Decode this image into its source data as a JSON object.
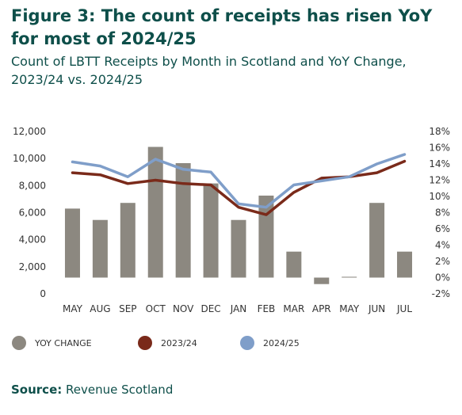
{
  "title": "Figure 3: The count of receipts has risen YoY for most of 2024/25",
  "subtitle": "Count of LBTT Receipts by Month in Scotland and YoY Change, 2023/24 vs. 2024/25",
  "source": {
    "label": "Source:",
    "text": "Revenue Scotland"
  },
  "chart_data": {
    "type": "bar+line",
    "categories": [
      "MAY",
      "AUG",
      "SEP",
      "OCT",
      "NOV",
      "DEC",
      "JAN",
      "FEB",
      "MAR",
      "APR",
      "MAY",
      "JUN",
      "JUL"
    ],
    "left_axis": {
      "ylim": [
        0,
        12000
      ],
      "ticks": [
        "0",
        "2,000",
        "4,000",
        "6,000",
        "8,000",
        "10,000",
        "12,000"
      ],
      "tick_values": [
        0,
        2000,
        4000,
        6000,
        8000,
        10000,
        12000
      ]
    },
    "right_axis": {
      "ylim": [
        -2,
        18
      ],
      "ticks": [
        "-2%",
        "0%",
        "2%",
        "4%",
        "6%",
        "8%",
        "10%",
        "12%",
        "14%",
        "16%",
        "18%"
      ],
      "tick_values": [
        -2,
        0,
        2,
        4,
        6,
        8,
        10,
        12,
        14,
        16,
        18
      ]
    },
    "bars": {
      "name": "YOY CHANGE",
      "axis": "right",
      "color": "#8c8880",
      "values": [
        8.5,
        7.1,
        9.2,
        16.1,
        14.1,
        11.6,
        7.1,
        10.1,
        3.2,
        -0.8,
        0.1,
        9.2,
        3.2
      ]
    },
    "series": [
      {
        "name": "2023/24",
        "axis": "left",
        "color": "#7a2a1a",
        "values": [
          8950,
          8800,
          8150,
          8400,
          8150,
          8050,
          6400,
          5850,
          7500,
          8550,
          8650,
          8950,
          9800
        ]
      },
      {
        "name": "2024/25",
        "axis": "left",
        "color": "#7f9ec9",
        "values": [
          9750,
          9450,
          8650,
          9950,
          9200,
          9000,
          6650,
          6400,
          8050,
          8350,
          8650,
          9600,
          10300
        ]
      }
    ],
    "legend": {
      "position": "bottom",
      "entries": [
        "YOY CHANGE",
        "2023/24",
        "2024/25"
      ]
    }
  }
}
